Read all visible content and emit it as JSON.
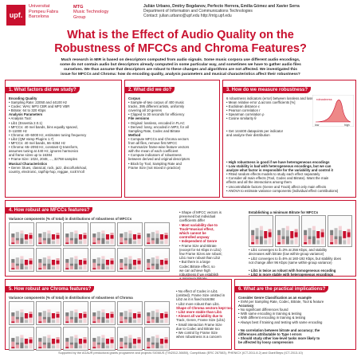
{
  "header": {
    "logo_text": "upf.",
    "university": [
      "Universitat",
      "Pompeu Fabra",
      "Barcelona"
    ],
    "mtg": [
      "MTG",
      "Music Technology",
      "Group"
    ],
    "authors": "Julián Urbano, Dmitry Bogdanov, Perfecto Herrera, Emilia Gómez and Xavier Serra",
    "affiliation": "Department of Information and Communications Technologies",
    "contact": "Contact: julian.urbano@upf.edu     http://mtg.upf.edu"
  },
  "title": [
    "What is the Effect of Audio Quality on the",
    "Robustness of MFCCs and Chroma Features?"
  ],
  "abstract": [
    "Much research in MIR is based on descriptors computed from audio signals. Some music corpora use different audio encodings,",
    "some do not contain audio but descriptors already computed in some particular way, and sometimes we have to gather audio files",
    "ourselves. We thus assume that descriptors are robust to these changes and algorithms are not affected. We investigated this",
    "issue for MFCCs and Chroma: how do encoding quality, analysis parameters and musical characteristics affect their robustness?"
  ],
  "box1": {
    "title": "1. What factors did we study?",
    "lines": [
      "Encoding Quality",
      "• Sampling Rate: 22050 and 44100 Hz",
      "• Codec: WAV, MP3 CBR and MP3 VBR",
      "• Bitrate: 64 to 320 Kbps",
      "Analysis Parameters",
      "• Analysis Tool:",
      "  • Lib1 (Essentia 2.0.1)",
      "     • MFCCs: 40 mel bands, bins equally spaced,",
      "       0–11000 Hz",
      "     • Chroma: 40–5000 Hz, estimates tuning frequency",
      "  • Lib2 (QM Vamp Plugins 1.7)",
      "     • MFCCs: 40 mel bands, 66–6364 Hz",
      "     • Chroma: 65–2093 Hz, constant Q transform,",
      "       assumes tuning at 440 Hz, ignores harmonics",
      "       and frame sizes up to 16384",
      "• Frame Size: 1024, 2048, ..., 32768 samples",
      "Musical Characteristics",
      "• Genre: blues, classical, rock, jazz, disco/funk/soul,",
      "  country, electronic, rap/hip-hop, reggae, rock'n'roll"
    ]
  },
  "box2": {
    "title": "2. What did we do?",
    "lines": [
      "Corpus",
      "• Sample-of-two corpus of 400 music",
      "  tracks, 395 different artists, uniformly",
      "  covering all 10 genres",
      "• Clipped to 30 seconds for efficiency",
      "File versions",
      "• Original: lossless, encoded in FLAC",
      "• Derived: lossy, encoded in MP3, for all",
      "  Sampling Rate, Codec and Bitrate",
      "Method",
      "• Compute MFCCs and Chroma vectors",
      "  from all files, remove first MFCC",
      "• Summarize frame-wise feature vectors",
      "  with the mean of each coefficient",
      "• Compute indicators of robustness",
      "  between derived and original descriptors",
      "• Block by Tool, Sampling Rate and",
      "  Frame Size (not mixed in practice)"
    ]
  },
  "box3": {
    "title": "3. How do we measure robustness?",
    "lines": [
      "6 robustness indicators (error) between lossless and lossy",
      "• Mean relative error Δ across coefficients [%]",
      "• Euclidean distance ε",
      "• Pearson correlation r",
      "• Spearman correlation ρ",
      "• Cosine similarity θ",
      "",
      "",
      "• Get 144400 datapoints per indicator",
      "  and analyze their distribution"
    ],
    "fig_labels": [
      "robustness",
      "low",
      "high"
    ],
    "findings": [
      "• High robustness is good if we have heterogeneous encodings",
      "• Low stability is bad with heterogeneous encodings, but we can",
      "  analyze what factor is responsible for the variability and control it",
      "• Fitted random effects models to study each effect separately",
      "• Consider all main effects (Tool, Codec and Bitrate). Want the main",
      "  effects and all the interactions among them",
      "• Uncontrollable factors (Genre and Track) affect only main effects",
      "• ANOVA to estimate variance components (individual effect contributions)"
    ]
  },
  "box4": {
    "title": "4. How robust are MFCCs features?",
    "fig_title": "Variance components (% of total) in distributions of robustness of MFCCs",
    "side": [
      "• Shape of MFCC vectors is",
      "  preserved but individual",
      "  coefficients differ",
      "• Most variability due to",
      "  Track=musical effect,",
      "  which cannot be",
      "  controlled anyway",
      "• Independent of Genre",
      "• Frame Size and Bitrate",
      "  (except for 64 Kbps in Lib1)",
      "  few Frame Sizes are robust;",
      "  Lib1 more robust than Lib2",
      "• But there is a large",
      "  Codec:Bitrate effect, so",
      "  we can achieve high",
      "  robustness if we establish",
      "  a minimum Bitrate"
    ],
    "right_title": "Establishing a minimum Bitrate for MFCCs",
    "right_lines": [
      "• Lib1 converges to δ=3% at 256 Kbps, and stability",
      "  decreases with bitrate (low within-group variance)",
      "• Lib2 converges to δ=5% at 160-192 Kbps, but stability does",
      "  not change after 96 Kbps (same within-group variance)",
      "",
      "• Lib1 is twice as robust with homogeneous encoding",
      "• Lib2 is more stable with heterogeneous encodings"
    ]
  },
  "box5": {
    "title": "5. How robust are Chroma features?",
    "fig_title": "Variance components (% of total) in distributions of robustness of Chroma",
    "side": [
      "• No effect of Codec in Lib1",
      "  (omitted). Frame Size omitted in",
      "  Lib2 as it is fixed to16384",
      "• Lib2 more robust than Lib1.",
      "  Shape of Chroma vectors kept too.",
      "• Lib2 more stable than Lib1",
      "• Almost all variability due to",
      "  Track, Genre, Frame Size (Lib1)",
      "• Small interaction Frame Size",
      "  due to Codec and Bitrate too",
      "• We control by Frame Size",
      "  when robustness is a concern"
    ]
  },
  "box6": {
    "title": "6. What are the practical implications?",
    "lines": [
      "Consider Genre Classification as an example",
      "• SVM per Sampling Rate, Codec, Bitrate, Tool & feature",
      "Accuracy",
      "• No significant differences found",
      "  • With same encoding in training & testing",
      "  • With different encoding in training & testing",
      "• Always best if training and testing with same encoding",
      "",
      "• No correlation between bitrate and accuracy; the",
      "  differences attributable to Type I errors",
      "• Should study other low-level tasks more likely to",
      "  be affected by lossy compression"
    ]
  },
  "footer": "Supported by the AGAUR predoctoral grants programme and projects SIGMUS (TIN2012-36650), CompMusic (ERC 267583), PHENICX (ICT-2011.8.2) and GiantSteps (ICT-2013-10)",
  "colors": {
    "accent": "#c8102e"
  }
}
